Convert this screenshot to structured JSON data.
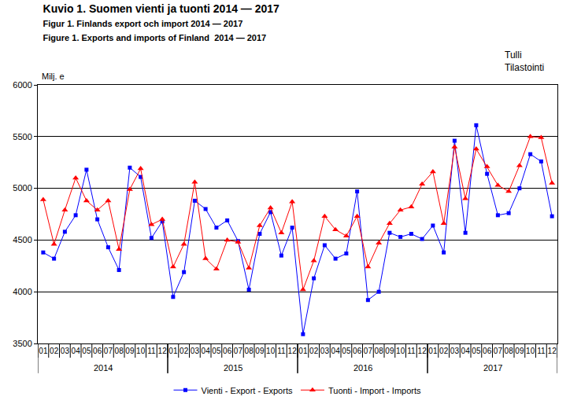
{
  "chart_data": {
    "type": "line",
    "title": "Kuvio 1. Suomen vienti ja tuonti 2014 — 2017",
    "subtitle": [
      "Figur 1. Finlands export och import 2014 — 2017",
      "Figure 1. Exports and imports of Finland  2014 — 2017"
    ],
    "y_label": "Milj. e",
    "annotations": [
      "Tulli",
      "Tilastointi"
    ],
    "categories": [
      "01",
      "02",
      "03",
      "04",
      "05",
      "06",
      "07",
      "08",
      "09",
      "10",
      "11",
      "12",
      "01",
      "02",
      "03",
      "04",
      "05",
      "06",
      "07",
      "08",
      "09",
      "10",
      "11",
      "12",
      "01",
      "02",
      "03",
      "04",
      "05",
      "06",
      "07",
      "08",
      "09",
      "10",
      "11",
      "12",
      "01",
      "02",
      "03",
      "04",
      "05",
      "06",
      "07",
      "08",
      "09",
      "10",
      "11",
      "12"
    ],
    "groups": [
      {
        "label": "2014",
        "count": 12
      },
      {
        "label": "2015",
        "count": 12
      },
      {
        "label": "2016",
        "count": 12
      },
      {
        "label": "2017",
        "count": 12
      }
    ],
    "series": [
      {
        "name": "Vienti - Export - Exports",
        "color": "#0000ff",
        "marker": "square",
        "line_style": "solid",
        "values": [
          4380,
          4320,
          4580,
          4740,
          5180,
          4700,
          4430,
          4210,
          5200,
          5110,
          4520,
          4680,
          3950,
          4190,
          4880,
          4800,
          4620,
          4690,
          4490,
          4020,
          4560,
          4770,
          4350,
          4620,
          3590,
          4130,
          4450,
          4320,
          4370,
          4970,
          3920,
          4000,
          4570,
          4530,
          4560,
          4510,
          4640,
          4380,
          5460,
          4570,
          5610,
          5140,
          4740,
          4760,
          5000,
          5330,
          5260,
          4730
        ]
      },
      {
        "name": "Tuonti - Import - Imports",
        "color": "#ff0000",
        "marker": "triangle-up",
        "line_style": "solid",
        "values": [
          4890,
          4460,
          4790,
          5100,
          4880,
          4790,
          4880,
          4410,
          4990,
          5190,
          4650,
          4700,
          4240,
          4460,
          5060,
          4320,
          4220,
          4500,
          4480,
          4230,
          4640,
          4810,
          4570,
          4870,
          4020,
          4300,
          4730,
          4600,
          4540,
          4730,
          4240,
          4470,
          4660,
          4790,
          4820,
          5040,
          5160,
          4660,
          5400,
          4900,
          5380,
          5210,
          5030,
          4970,
          5220,
          5500,
          5490,
          5050
        ]
      }
    ],
    "ylim": [
      3500,
      6000
    ],
    "yticks": [
      3500,
      4000,
      4500,
      5000,
      5500,
      6000
    ],
    "grid": true,
    "legend": "bottom"
  }
}
